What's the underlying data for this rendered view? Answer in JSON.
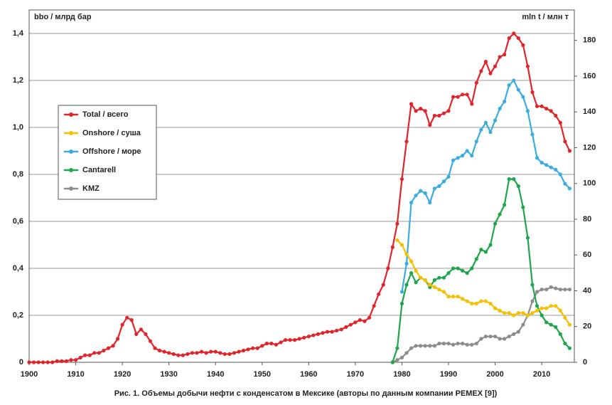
{
  "chart_data": {
    "type": "line",
    "y_label": "bbo / млрд бар",
    "y2_label": "mln t / млн т",
    "caption": "Рис. 1. Объемы добычи нефти с конденсатом в Мексике (авторы по данным компании PEMEX [9])",
    "x": [
      1900,
      1901,
      1902,
      1903,
      1904,
      1905,
      1906,
      1907,
      1908,
      1909,
      1910,
      1911,
      1912,
      1913,
      1914,
      1915,
      1916,
      1917,
      1918,
      1919,
      1920,
      1921,
      1922,
      1923,
      1924,
      1925,
      1926,
      1927,
      1928,
      1929,
      1930,
      1931,
      1932,
      1933,
      1934,
      1935,
      1936,
      1937,
      1938,
      1939,
      1940,
      1941,
      1942,
      1943,
      1944,
      1945,
      1946,
      1947,
      1948,
      1949,
      1950,
      1951,
      1952,
      1953,
      1954,
      1955,
      1956,
      1957,
      1958,
      1959,
      1960,
      1961,
      1962,
      1963,
      1964,
      1965,
      1966,
      1967,
      1968,
      1969,
      1970,
      1971,
      1972,
      1973,
      1974,
      1975,
      1976,
      1977,
      1978,
      1979,
      1980,
      1981,
      1982,
      1983,
      1984,
      1985,
      1986,
      1987,
      1988,
      1989,
      1990,
      1991,
      1992,
      1993,
      1994,
      1995,
      1996,
      1997,
      1998,
      1999,
      2000,
      2001,
      2002,
      2003,
      2004,
      2005,
      2006,
      2007,
      2008,
      2009,
      2010,
      2011,
      2012,
      2013,
      2014,
      2015,
      2016
    ],
    "series": [
      {
        "name": "Total / всего",
        "color": "#e0242b",
        "values": [
          0,
          0,
          0,
          0,
          0,
          0,
          0.005,
          0.005,
          0.005,
          0.01,
          0.01,
          0.02,
          0.03,
          0.03,
          0.04,
          0.04,
          0.05,
          0.06,
          0.07,
          0.1,
          0.16,
          0.19,
          0.18,
          0.12,
          0.14,
          0.12,
          0.09,
          0.06,
          0.05,
          0.045,
          0.04,
          0.035,
          0.03,
          0.03,
          0.035,
          0.04,
          0.04,
          0.045,
          0.04,
          0.045,
          0.045,
          0.04,
          0.035,
          0.035,
          0.04,
          0.045,
          0.05,
          0.055,
          0.06,
          0.06,
          0.07,
          0.08,
          0.08,
          0.075,
          0.085,
          0.095,
          0.095,
          0.095,
          0.1,
          0.105,
          0.11,
          0.115,
          0.12,
          0.125,
          0.13,
          0.13,
          0.135,
          0.14,
          0.15,
          0.16,
          0.17,
          0.18,
          0.175,
          0.19,
          0.24,
          0.29,
          0.33,
          0.4,
          0.49,
          0.59,
          0.78,
          0.94,
          1.1,
          1.07,
          1.08,
          1.07,
          1.01,
          1.05,
          1.05,
          1.06,
          1.07,
          1.13,
          1.13,
          1.14,
          1.14,
          1.1,
          1.19,
          1.24,
          1.28,
          1.23,
          1.26,
          1.3,
          1.31,
          1.38,
          1.4,
          1.38,
          1.35,
          1.26,
          1.15,
          1.09,
          1.09,
          1.08,
          1.07,
          1.05,
          1.02,
          0.94,
          0.9
        ]
      },
      {
        "name": "Onshore / суша",
        "color": "#f5c000",
        "values": [
          null,
          null,
          null,
          null,
          null,
          null,
          null,
          null,
          null,
          null,
          null,
          null,
          null,
          null,
          null,
          null,
          null,
          null,
          null,
          null,
          null,
          null,
          null,
          null,
          null,
          null,
          null,
          null,
          null,
          null,
          null,
          null,
          null,
          null,
          null,
          null,
          null,
          null,
          null,
          null,
          null,
          null,
          null,
          null,
          null,
          null,
          null,
          null,
          null,
          null,
          null,
          null,
          null,
          null,
          null,
          null,
          null,
          null,
          null,
          null,
          null,
          null,
          null,
          null,
          null,
          null,
          null,
          null,
          null,
          null,
          null,
          null,
          null,
          null,
          null,
          null,
          null,
          null,
          null,
          0.52,
          0.5,
          0.46,
          0.43,
          0.39,
          0.36,
          0.35,
          0.33,
          0.32,
          0.31,
          0.3,
          0.28,
          0.28,
          0.28,
          0.27,
          0.26,
          0.25,
          0.25,
          0.26,
          0.26,
          0.25,
          0.23,
          0.22,
          0.21,
          0.21,
          0.2,
          0.21,
          0.21,
          0.2,
          0.21,
          0.22,
          0.23,
          0.23,
          0.24,
          0.24,
          0.22,
          0.19,
          0.16
        ]
      },
      {
        "name": "Offshore / море",
        "color": "#3aace0",
        "values": [
          null,
          null,
          null,
          null,
          null,
          null,
          null,
          null,
          null,
          null,
          null,
          null,
          null,
          null,
          null,
          null,
          null,
          null,
          null,
          null,
          null,
          null,
          null,
          null,
          null,
          null,
          null,
          null,
          null,
          null,
          null,
          null,
          null,
          null,
          null,
          null,
          null,
          null,
          null,
          null,
          null,
          null,
          null,
          null,
          null,
          null,
          null,
          null,
          null,
          null,
          null,
          null,
          null,
          null,
          null,
          null,
          null,
          null,
          null,
          null,
          null,
          null,
          null,
          null,
          null,
          null,
          null,
          null,
          null,
          null,
          null,
          null,
          null,
          null,
          null,
          null,
          null,
          null,
          null,
          null,
          0.3,
          0.42,
          0.68,
          0.71,
          0.73,
          0.72,
          0.68,
          0.74,
          0.75,
          0.77,
          0.79,
          0.86,
          0.87,
          0.88,
          0.9,
          0.88,
          0.94,
          0.99,
          1.02,
          0.98,
          1.03,
          1.08,
          1.11,
          1.18,
          1.2,
          1.16,
          1.13,
          1.07,
          0.97,
          0.87,
          0.85,
          0.84,
          0.83,
          0.82,
          0.8,
          0.76,
          0.74
        ]
      },
      {
        "name": "Cantarell",
        "color": "#1fa54b",
        "values": [
          null,
          null,
          null,
          null,
          null,
          null,
          null,
          null,
          null,
          null,
          null,
          null,
          null,
          null,
          null,
          null,
          null,
          null,
          null,
          null,
          null,
          null,
          null,
          null,
          null,
          null,
          null,
          null,
          null,
          null,
          null,
          null,
          null,
          null,
          null,
          null,
          null,
          null,
          null,
          null,
          null,
          null,
          null,
          null,
          null,
          null,
          null,
          null,
          null,
          null,
          null,
          null,
          null,
          null,
          null,
          null,
          null,
          null,
          null,
          null,
          null,
          null,
          null,
          null,
          null,
          null,
          null,
          null,
          null,
          null,
          null,
          null,
          null,
          null,
          null,
          null,
          null,
          null,
          0,
          0.06,
          0.25,
          0.33,
          0.38,
          0.34,
          0.36,
          0.35,
          0.32,
          0.35,
          0.36,
          0.36,
          0.38,
          0.4,
          0.4,
          0.39,
          0.38,
          0.4,
          0.44,
          0.48,
          0.47,
          0.5,
          0.59,
          0.63,
          0.67,
          0.78,
          0.78,
          0.75,
          0.66,
          0.53,
          0.33,
          0.24,
          0.2,
          0.17,
          0.16,
          0.15,
          0.12,
          0.08,
          0.06
        ]
      },
      {
        "name": "KMZ",
        "color": "#8c8c8c",
        "values": [
          null,
          null,
          null,
          null,
          null,
          null,
          null,
          null,
          null,
          null,
          null,
          null,
          null,
          null,
          null,
          null,
          null,
          null,
          null,
          null,
          null,
          null,
          null,
          null,
          null,
          null,
          null,
          null,
          null,
          null,
          null,
          null,
          null,
          null,
          null,
          null,
          null,
          null,
          null,
          null,
          null,
          null,
          null,
          null,
          null,
          null,
          null,
          null,
          null,
          null,
          null,
          null,
          null,
          null,
          null,
          null,
          null,
          null,
          null,
          null,
          null,
          null,
          null,
          null,
          null,
          null,
          null,
          null,
          null,
          null,
          null,
          null,
          null,
          null,
          null,
          null,
          null,
          null,
          0,
          0.01,
          0.02,
          0.04,
          0.06,
          0.07,
          0.07,
          0.07,
          0.07,
          0.07,
          0.08,
          0.08,
          0.08,
          0.075,
          0.08,
          0.08,
          0.075,
          0.075,
          0.08,
          0.1,
          0.11,
          0.11,
          0.11,
          0.1,
          0.1,
          0.11,
          0.12,
          0.13,
          0.16,
          0.2,
          0.26,
          0.3,
          0.31,
          0.31,
          0.32,
          0.315,
          0.31,
          0.31,
          0.31
        ]
      }
    ],
    "xlim": [
      1900,
      2017
    ],
    "xticks": [
      1900,
      1910,
      1920,
      1930,
      1940,
      1950,
      1960,
      1970,
      1980,
      1990,
      2000,
      2010
    ],
    "ylim": [
      0,
      1.5
    ],
    "yticks": [
      0,
      {
        "value": 0.2,
        "label": "0,2"
      },
      {
        "value": 0.4,
        "label": "0,4"
      },
      {
        "value": 0.6,
        "label": "0,6"
      },
      {
        "value": 0.8,
        "label": "0,8"
      },
      {
        "value": 1.0,
        "label": "1,0"
      },
      {
        "value": 1.2,
        "label": "1,2"
      },
      {
        "value": 1.4,
        "label": "1,4"
      }
    ],
    "y2lim": [
      0,
      197
    ],
    "y2ticks": [
      0,
      20,
      40,
      60,
      80,
      100,
      120,
      140,
      160,
      180
    ],
    "grid": true,
    "legend": "left"
  }
}
